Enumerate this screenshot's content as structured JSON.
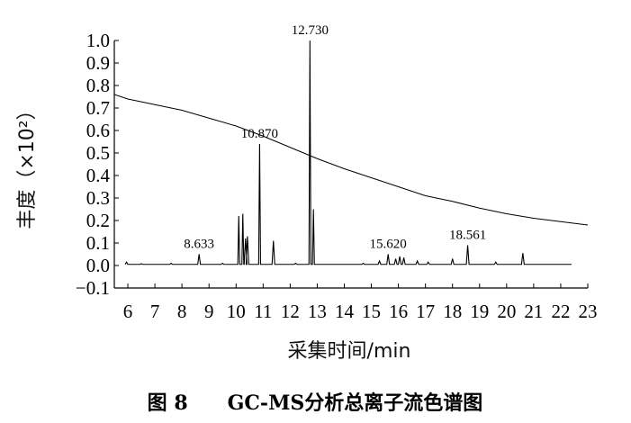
{
  "chart_data": {
    "type": "line",
    "xlabel": "采集时间/min",
    "ylabel": "丰度（×10²）",
    "caption": "图 8　　GC-MS分析总离子流色谱图",
    "xlim": [
      5.5,
      23
    ],
    "ylim": [
      -0.1,
      1.0
    ],
    "x_ticks": [
      6,
      7,
      8,
      9,
      10,
      11,
      12,
      13,
      14,
      15,
      16,
      17,
      18,
      19,
      20,
      21,
      22,
      23
    ],
    "y_ticks": [
      -0.1,
      0.0,
      0.1,
      0.2,
      0.3,
      0.4,
      0.5,
      0.6,
      0.7,
      0.8,
      0.9,
      1.0
    ],
    "y_tick_labels": [
      "−0.1",
      "0.0",
      "0.1",
      "0.2",
      "0.3",
      "0.4",
      "0.5",
      "0.6",
      "0.7",
      "0.8",
      "0.9",
      "1.0"
    ],
    "peak_labels": [
      {
        "label": "8.633",
        "x": 8.633,
        "y": 0.05
      },
      {
        "label": "10.870",
        "x": 10.87,
        "y": 0.54
      },
      {
        "label": "12.730",
        "x": 12.73,
        "y": 1.0
      },
      {
        "label": "15.620",
        "x": 15.62,
        "y": 0.05
      },
      {
        "label": "18.561",
        "x": 18.561,
        "y": 0.09
      }
    ],
    "series": [
      {
        "type": "peaks",
        "baseline": 0.005,
        "x_end": 22.4,
        "peaks": [
          {
            "x": 5.95,
            "y": 0.015
          },
          {
            "x": 6.5,
            "y": 0.008
          },
          {
            "x": 7.6,
            "y": 0.01
          },
          {
            "x": 8.633,
            "y": 0.05
          },
          {
            "x": 9.5,
            "y": 0.01
          },
          {
            "x": 10.1,
            "y": 0.22
          },
          {
            "x": 10.25,
            "y": 0.23
          },
          {
            "x": 10.35,
            "y": 0.12
          },
          {
            "x": 10.42,
            "y": 0.13
          },
          {
            "x": 10.87,
            "y": 0.54
          },
          {
            "x": 11.38,
            "y": 0.11
          },
          {
            "x": 12.2,
            "y": 0.01
          },
          {
            "x": 12.73,
            "y": 1.0
          },
          {
            "x": 12.86,
            "y": 0.25
          },
          {
            "x": 14.7,
            "y": 0.01
          },
          {
            "x": 15.3,
            "y": 0.02
          },
          {
            "x": 15.62,
            "y": 0.05
          },
          {
            "x": 15.9,
            "y": 0.03
          },
          {
            "x": 16.05,
            "y": 0.04
          },
          {
            "x": 16.2,
            "y": 0.035
          },
          {
            "x": 16.7,
            "y": 0.02
          },
          {
            "x": 17.1,
            "y": 0.015
          },
          {
            "x": 18.0,
            "y": 0.03
          },
          {
            "x": 18.561,
            "y": 0.09
          },
          {
            "x": 19.6,
            "y": 0.015
          },
          {
            "x": 20.6,
            "y": 0.055
          }
        ]
      },
      {
        "type": "drift",
        "x": [
          5.5,
          6,
          7,
          8,
          9,
          10,
          11,
          12,
          13,
          14,
          15,
          16,
          17,
          18,
          19,
          20,
          21,
          22,
          23
        ],
        "y": [
          0.76,
          0.74,
          0.715,
          0.69,
          0.655,
          0.62,
          0.575,
          0.525,
          0.475,
          0.43,
          0.39,
          0.35,
          0.31,
          0.285,
          0.255,
          0.23,
          0.21,
          0.195,
          0.18
        ]
      }
    ]
  }
}
